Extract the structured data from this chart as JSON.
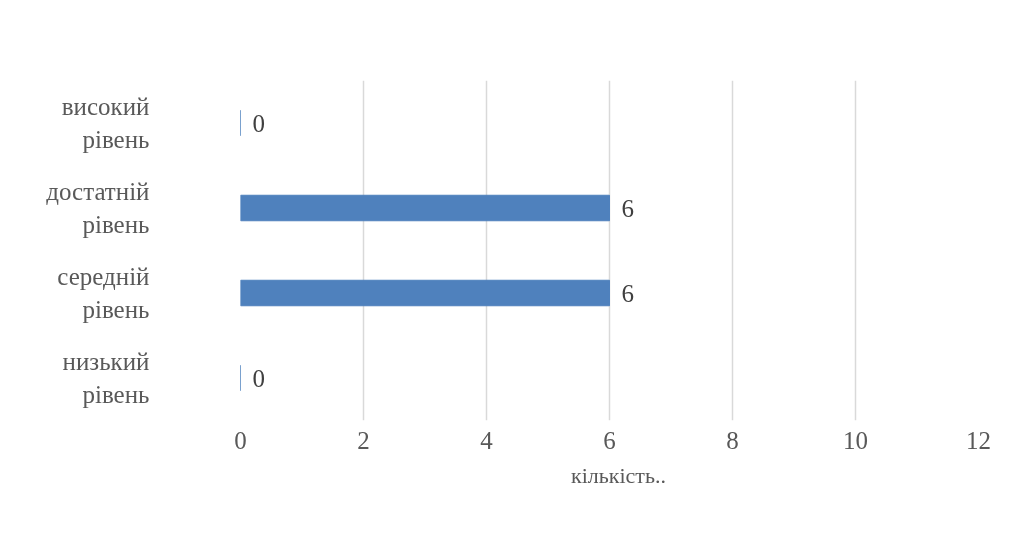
{
  "chart_data": {
    "type": "bar",
    "orientation": "horizontal",
    "categories": [
      "високий рівень",
      "достатній рівень",
      "середній рівень",
      "низький рівень"
    ],
    "series": [
      {
        "name": "кількість..",
        "color": "#4f81bd",
        "values": [
          0,
          6,
          6,
          0
        ]
      }
    ],
    "xlim": [
      0,
      12
    ],
    "xticks": [
      0,
      2,
      4,
      6,
      8,
      10,
      12
    ],
    "grid": "x",
    "legend": "bottom",
    "data_labels": true
  }
}
